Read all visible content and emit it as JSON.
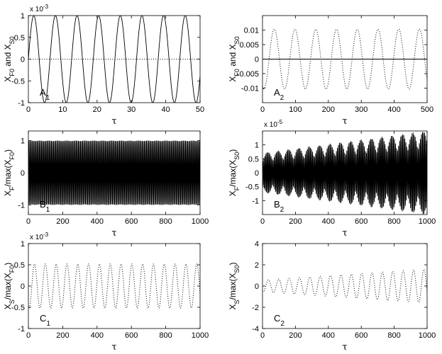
{
  "chart_data": [
    {
      "id": "A1",
      "tag": "A",
      "tag_sub": "1",
      "type": "line",
      "xlim": [
        0,
        50
      ],
      "ylim": [
        -1,
        1
      ],
      "xticks": [
        "0",
        "10",
        "20",
        "30",
        "40",
        "50"
      ],
      "yticks": [
        "1",
        "0.5",
        "0",
        "-0.5",
        "-1"
      ],
      "ytick_values": [
        1,
        0.5,
        0,
        -0.5,
        -1
      ],
      "multiplier": "x 10",
      "multiplier_exp": "-3",
      "xlabel": "τ",
      "ylabel_parts": [
        [
          "X",
          ""
        ],
        [
          "F0",
          "sub"
        ],
        [
          " and X",
          ""
        ],
        [
          "S0",
          "sub"
        ]
      ],
      "series": [
        {
          "style": "solid",
          "kind": "sine",
          "amplitude": 1,
          "period": 6.3,
          "phase": 0,
          "growth": 0
        },
        {
          "style": "dotted",
          "kind": "const",
          "value": 0
        }
      ]
    },
    {
      "id": "A2",
      "tag": "A",
      "tag_sub": "2",
      "type": "line",
      "xlim": [
        0,
        500
      ],
      "ylim": [
        -0.015,
        0.015
      ],
      "xticks": [
        "0",
        "100",
        "200",
        "300",
        "400",
        "500"
      ],
      "yticks": [
        "0.01",
        "0.005",
        "0",
        "-0.005",
        "-0.01"
      ],
      "ytick_values": [
        0.01,
        0.005,
        0,
        -0.005,
        -0.01
      ],
      "multiplier": "",
      "multiplier_exp": "",
      "xlabel": "τ",
      "ylabel_parts": [
        [
          "X",
          ""
        ],
        [
          "F0",
          "sub"
        ],
        [
          " and X",
          ""
        ],
        [
          "S0",
          "sub"
        ]
      ],
      "series": [
        {
          "style": "dotted",
          "kind": "sine",
          "amplitude": 0.0103,
          "period": 63,
          "phase": 20,
          "growth": 0
        },
        {
          "style": "solid",
          "kind": "const",
          "value": 0
        }
      ]
    },
    {
      "id": "B1",
      "tag": "B",
      "tag_sub": "1",
      "type": "line",
      "xlim": [
        0,
        1000
      ],
      "ylim": [
        -1.3,
        1.3
      ],
      "xticks": [
        "0",
        "200",
        "400",
        "600",
        "800",
        "1000"
      ],
      "yticks": [
        "1",
        "0",
        "-1"
      ],
      "ytick_values": [
        1,
        0,
        -1
      ],
      "multiplier": "",
      "multiplier_exp": "",
      "xlabel": "τ",
      "ylabel_parts": [
        [
          "X",
          ""
        ],
        [
          "F",
          "sub"
        ],
        [
          "/max(X",
          ""
        ],
        [
          "F0",
          "sub"
        ],
        [
          ")",
          ""
        ]
      ],
      "series": [
        {
          "style": "solid",
          "kind": "sine",
          "amplitude": 1,
          "period": 6.3,
          "phase": 0,
          "growth": 0
        }
      ]
    },
    {
      "id": "B2",
      "tag": "B",
      "tag_sub": "2",
      "type": "line",
      "xlim": [
        0,
        1000
      ],
      "ylim": [
        -1.5,
        1.5
      ],
      "xticks": [
        "0",
        "200",
        "400",
        "600",
        "800",
        "1000"
      ],
      "yticks": [
        "1",
        "0.5",
        "0",
        "-0.5",
        "-1"
      ],
      "ytick_values": [
        1,
        0.5,
        0,
        -0.5,
        -1
      ],
      "multiplier": "x 10",
      "multiplier_exp": "-5",
      "xlabel": "τ",
      "ylabel_parts": [
        [
          "X",
          ""
        ],
        [
          "F",
          "sub"
        ],
        [
          "/max(X",
          ""
        ],
        [
          "S0",
          "sub"
        ],
        [
          ")",
          ""
        ]
      ],
      "series": [
        {
          "style": "solid",
          "kind": "beat",
          "amplitude": 0.45,
          "period": 6.3,
          "mod_period": 63,
          "growth": 0.0011
        }
      ]
    },
    {
      "id": "C1",
      "tag": "C",
      "tag_sub": "1",
      "type": "line",
      "xlim": [
        0,
        1000
      ],
      "ylim": [
        -1,
        1
      ],
      "xticks": [
        "0",
        "200",
        "400",
        "600",
        "800",
        "1000"
      ],
      "yticks": [
        "1",
        "0.5",
        "0",
        "-0.5",
        "-1"
      ],
      "ytick_values": [
        1,
        0.5,
        0,
        -0.5,
        -1
      ],
      "multiplier": "x 10",
      "multiplier_exp": "-3",
      "xlabel": "τ",
      "ylabel_parts": [
        [
          "X",
          ""
        ],
        [
          "S",
          "sub"
        ],
        [
          "/max(X",
          ""
        ],
        [
          "F0",
          "sub"
        ],
        [
          ")",
          ""
        ]
      ],
      "series": [
        {
          "style": "dotted",
          "kind": "sine",
          "amplitude": 0.52,
          "period": 63,
          "phase": 20,
          "growth": 0
        }
      ]
    },
    {
      "id": "C2",
      "tag": "C",
      "tag_sub": "2",
      "type": "line",
      "xlim": [
        0,
        1000
      ],
      "ylim": [
        -4,
        4
      ],
      "xticks": [
        "0",
        "200",
        "400",
        "600",
        "800",
        "1000"
      ],
      "yticks": [
        "4",
        "2",
        "0",
        "-2",
        "-4"
      ],
      "ytick_values": [
        4,
        2,
        0,
        -2,
        -4
      ],
      "multiplier": "",
      "multiplier_exp": "",
      "xlabel": "τ",
      "ylabel_parts": [
        [
          "X",
          ""
        ],
        [
          "S",
          "sub"
        ],
        [
          "/max(X",
          ""
        ],
        [
          "S0",
          "sub"
        ],
        [
          ")",
          ""
        ]
      ],
      "series": [
        {
          "style": "dotted",
          "kind": "sine",
          "amplitude": 0.55,
          "period": 63,
          "phase": 20,
          "growth": 0.0019
        }
      ]
    }
  ]
}
